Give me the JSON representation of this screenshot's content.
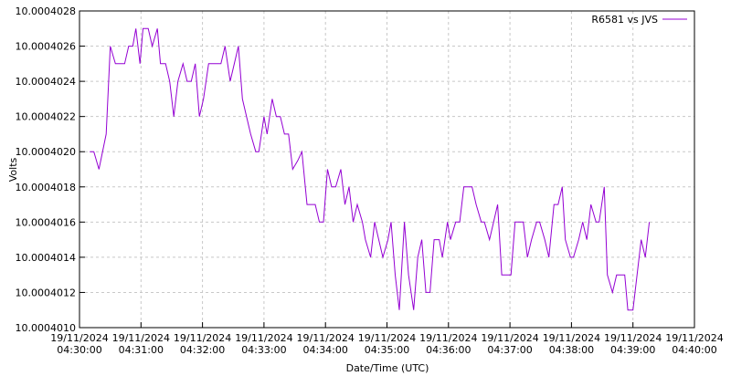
{
  "chart_data": {
    "type": "line",
    "y_label": "Volts",
    "x_label": "Date/Time (UTC)",
    "legend": "top-right",
    "grid": true,
    "xlim": [
      "2024-11-19 04:30:00",
      "2024-11-19 04:40:00"
    ],
    "xticks": [
      {
        "value": "2024-11-19 04:30:00",
        "label": [
          "19/11/2024",
          "04:30:00"
        ]
      },
      {
        "value": "2024-11-19 04:31:00",
        "label": [
          "19/11/2024",
          "04:31:00"
        ]
      },
      {
        "value": "2024-11-19 04:32:00",
        "label": [
          "19/11/2024",
          "04:32:00"
        ]
      },
      {
        "value": "2024-11-19 04:33:00",
        "label": [
          "19/11/2024",
          "04:33:00"
        ]
      },
      {
        "value": "2024-11-19 04:34:00",
        "label": [
          "19/11/2024",
          "04:34:00"
        ]
      },
      {
        "value": "2024-11-19 04:35:00",
        "label": [
          "19/11/2024",
          "04:35:00"
        ]
      },
      {
        "value": "2024-11-19 04:36:00",
        "label": [
          "19/11/2024",
          "04:36:00"
        ]
      },
      {
        "value": "2024-11-19 04:37:00",
        "label": [
          "19/11/2024",
          "04:37:00"
        ]
      },
      {
        "value": "2024-11-19 04:38:00",
        "label": [
          "19/11/2024",
          "04:38:00"
        ]
      },
      {
        "value": "2024-11-19 04:39:00",
        "label": [
          "19/11/2024",
          "04:39:00"
        ]
      },
      {
        "value": "2024-11-19 04:40:00",
        "label": [
          "19/11/2024",
          "04:40:00"
        ]
      }
    ],
    "ylim": [
      10.000401,
      10.0004028
    ],
    "yticks": [
      {
        "value": 10.000401,
        "label": "10.0004010"
      },
      {
        "value": 10.0004012,
        "label": "10.0004012"
      },
      {
        "value": 10.0004014,
        "label": "10.0004014"
      },
      {
        "value": 10.0004016,
        "label": "10.0004016"
      },
      {
        "value": 10.0004018,
        "label": "10.0004018"
      },
      {
        "value": 10.000402,
        "label": "10.0004020"
      },
      {
        "value": 10.0004022,
        "label": "10.0004022"
      },
      {
        "value": 10.0004024,
        "label": "10.0004024"
      },
      {
        "value": 10.0004026,
        "label": "10.0004026"
      },
      {
        "value": 10.0004028,
        "label": "10.0004028"
      }
    ],
    "x": [
      "2024-11-19 04:30:10",
      "2024-11-19 04:30:14",
      "2024-11-19 04:30:19",
      "2024-11-19 04:30:26",
      "2024-11-19 04:30:30",
      "2024-11-19 04:30:35",
      "2024-11-19 04:30:39",
      "2024-11-19 04:30:44",
      "2024-11-19 04:30:48",
      "2024-11-19 04:30:52",
      "2024-11-19 04:30:55",
      "2024-11-19 04:30:59",
      "2024-11-19 04:31:02",
      "2024-11-19 04:31:07",
      "2024-11-19 04:31:11",
      "2024-11-19 04:31:16",
      "2024-11-19 04:31:19",
      "2024-11-19 04:31:24",
      "2024-11-19 04:31:28",
      "2024-11-19 04:31:32",
      "2024-11-19 04:31:36",
      "2024-11-19 04:31:41",
      "2024-11-19 04:31:45",
      "2024-11-19 04:31:49",
      "2024-11-19 04:31:53",
      "2024-11-19 04:31:57",
      "2024-11-19 04:32:01",
      "2024-11-19 04:32:06",
      "2024-11-19 04:32:10",
      "2024-11-19 04:32:14",
      "2024-11-19 04:32:18",
      "2024-11-19 04:32:22",
      "2024-11-19 04:32:27",
      "2024-11-19 04:32:35",
      "2024-11-19 04:32:39",
      "2024-11-19 04:32:43",
      "2024-11-19 04:32:47",
      "2024-11-19 04:32:52",
      "2024-11-19 04:32:55",
      "2024-11-19 04:33:00",
      "2024-11-19 04:33:03",
      "2024-11-19 04:33:08",
      "2024-11-19 04:33:12",
      "2024-11-19 04:33:16",
      "2024-11-19 04:33:20",
      "2024-11-19 04:33:24",
      "2024-11-19 04:33:28",
      "2024-11-19 04:33:33",
      "2024-11-19 04:33:37",
      "2024-11-19 04:33:42",
      "2024-11-19 04:33:45",
      "2024-11-19 04:33:50",
      "2024-11-19 04:33:54",
      "2024-11-19 04:33:58",
      "2024-11-19 04:34:02",
      "2024-11-19 04:34:06",
      "2024-11-19 04:34:10",
      "2024-11-19 04:34:15",
      "2024-11-19 04:34:19",
      "2024-11-19 04:34:23",
      "2024-11-19 04:34:27",
      "2024-11-19 04:34:31",
      "2024-11-19 04:34:36",
      "2024-11-19 04:34:39",
      "2024-11-19 04:34:44",
      "2024-11-19 04:34:48",
      "2024-11-19 04:34:52",
      "2024-11-19 04:34:56",
      "2024-11-19 04:35:01",
      "2024-11-19 04:35:04",
      "2024-11-19 04:35:08",
      "2024-11-19 04:35:12",
      "2024-11-19 04:35:17",
      "2024-11-19 04:35:21",
      "2024-11-19 04:35:26",
      "2024-11-19 04:35:30",
      "2024-11-19 04:35:34",
      "2024-11-19 04:35:38",
      "2024-11-19 04:35:42",
      "2024-11-19 04:35:46",
      "2024-11-19 04:35:51",
      "2024-11-19 04:35:54",
      "2024-11-19 04:35:59",
      "2024-11-19 04:36:02",
      "2024-11-19 04:36:07",
      "2024-11-19 04:36:11",
      "2024-11-19 04:36:15",
      "2024-11-19 04:36:19",
      "2024-11-19 04:36:23",
      "2024-11-19 04:36:27",
      "2024-11-19 04:36:32",
      "2024-11-19 04:36:35",
      "2024-11-19 04:36:40",
      "2024-11-19 04:36:44",
      "2024-11-19 04:36:48",
      "2024-11-19 04:36:52",
      "2024-11-19 04:36:57",
      "2024-11-19 04:37:01",
      "2024-11-19 04:37:05",
      "2024-11-19 04:37:09",
      "2024-11-19 04:37:13",
      "2024-11-19 04:37:17",
      "2024-11-19 04:37:21",
      "2024-11-19 04:37:26",
      "2024-11-19 04:37:29",
      "2024-11-19 04:37:34",
      "2024-11-19 04:37:38",
      "2024-11-19 04:37:43",
      "2024-11-19 04:37:47",
      "2024-11-19 04:37:51",
      "2024-11-19 04:37:54",
      "2024-11-19 04:37:59",
      "2024-11-19 04:38:02",
      "2024-11-19 04:38:07",
      "2024-11-19 04:38:11",
      "2024-11-19 04:38:15",
      "2024-11-19 04:38:19",
      "2024-11-19 04:38:24",
      "2024-11-19 04:38:27",
      "2024-11-19 04:38:32",
      "2024-11-19 04:38:35",
      "2024-11-19 04:38:40",
      "2024-11-19 04:38:44",
      "2024-11-19 04:38:48",
      "2024-11-19 04:38:52",
      "2024-11-19 04:38:55",
      "2024-11-19 04:39:00",
      "2024-11-19 04:39:04",
      "2024-11-19 04:39:08",
      "2024-11-19 04:39:12",
      "2024-11-19 04:39:16"
    ],
    "series": [
      {
        "name": "R6581 vs JVS",
        "color": "#9400d3",
        "values": [
          10.000402,
          10.000402,
          10.0004019,
          10.0004021,
          10.0004026,
          10.0004025,
          10.0004025,
          10.0004025,
          10.0004026,
          10.0004026,
          10.0004027,
          10.0004025,
          10.0004027,
          10.0004027,
          10.0004026,
          10.0004027,
          10.0004025,
          10.0004025,
          10.0004024,
          10.0004022,
          10.0004024,
          10.0004025,
          10.0004024,
          10.0004024,
          10.0004025,
          10.0004022,
          10.0004023,
          10.0004025,
          10.0004025,
          10.0004025,
          10.0004025,
          10.0004026,
          10.0004024,
          10.0004026,
          10.0004023,
          10.0004022,
          10.0004021,
          10.000402,
          10.000402,
          10.0004022,
          10.0004021,
          10.0004023,
          10.0004022,
          10.0004022,
          10.0004021,
          10.0004021,
          10.0004019,
          10.00040195,
          10.000402,
          10.0004017,
          10.0004017,
          10.0004017,
          10.0004016,
          10.0004016,
          10.0004019,
          10.0004018,
          10.0004018,
          10.0004019,
          10.0004017,
          10.0004018,
          10.0004016,
          10.0004017,
          10.0004016,
          10.0004015,
          10.0004014,
          10.0004016,
          10.0004015,
          10.0004014,
          10.0004015,
          10.0004016,
          10.0004013,
          10.0004011,
          10.0004016,
          10.0004013,
          10.0004011,
          10.0004014,
          10.0004015,
          10.0004012,
          10.0004012,
          10.0004015,
          10.0004015,
          10.0004014,
          10.0004016,
          10.0004015,
          10.0004016,
          10.0004016,
          10.0004018,
          10.0004018,
          10.0004018,
          10.0004017,
          10.0004016,
          10.0004016,
          10.0004015,
          10.0004016,
          10.0004017,
          10.0004013,
          10.0004013,
          10.0004013,
          10.0004016,
          10.0004016,
          10.0004016,
          10.0004014,
          10.0004015,
          10.0004016,
          10.0004016,
          10.0004015,
          10.0004014,
          10.0004017,
          10.0004017,
          10.0004018,
          10.0004015,
          10.0004014,
          10.0004014,
          10.0004015,
          10.0004016,
          10.0004015,
          10.0004017,
          10.0004016,
          10.0004016,
          10.0004018,
          10.0004013,
          10.0004012,
          10.0004013,
          10.0004013,
          10.0004013,
          10.0004011,
          10.0004011,
          10.0004013,
          10.0004015,
          10.0004014,
          10.0004016
        ]
      }
    ]
  }
}
